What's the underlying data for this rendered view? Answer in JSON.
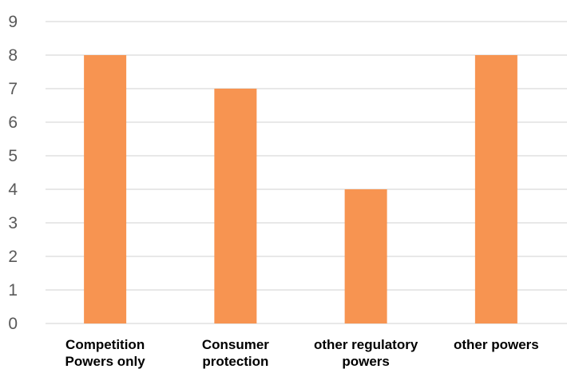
{
  "chart_data": {
    "type": "bar",
    "title": "",
    "xlabel": "",
    "ylabel": "",
    "categories": [
      [
        "Competition",
        "Powers only"
      ],
      [
        "Consumer",
        "protection"
      ],
      [
        "other regulatory",
        "powers"
      ],
      [
        "other powers"
      ]
    ],
    "values": [
      8,
      7,
      4,
      8
    ],
    "ylim": [
      0,
      9
    ],
    "yticks": [
      0,
      1,
      2,
      3,
      4,
      5,
      6,
      7,
      8,
      9
    ],
    "grid": true,
    "legend": "none",
    "colors": {
      "bar": "#F79451",
      "grid": "#D9D9D9",
      "axis_text": "#595959",
      "category_text": "#000000"
    }
  }
}
